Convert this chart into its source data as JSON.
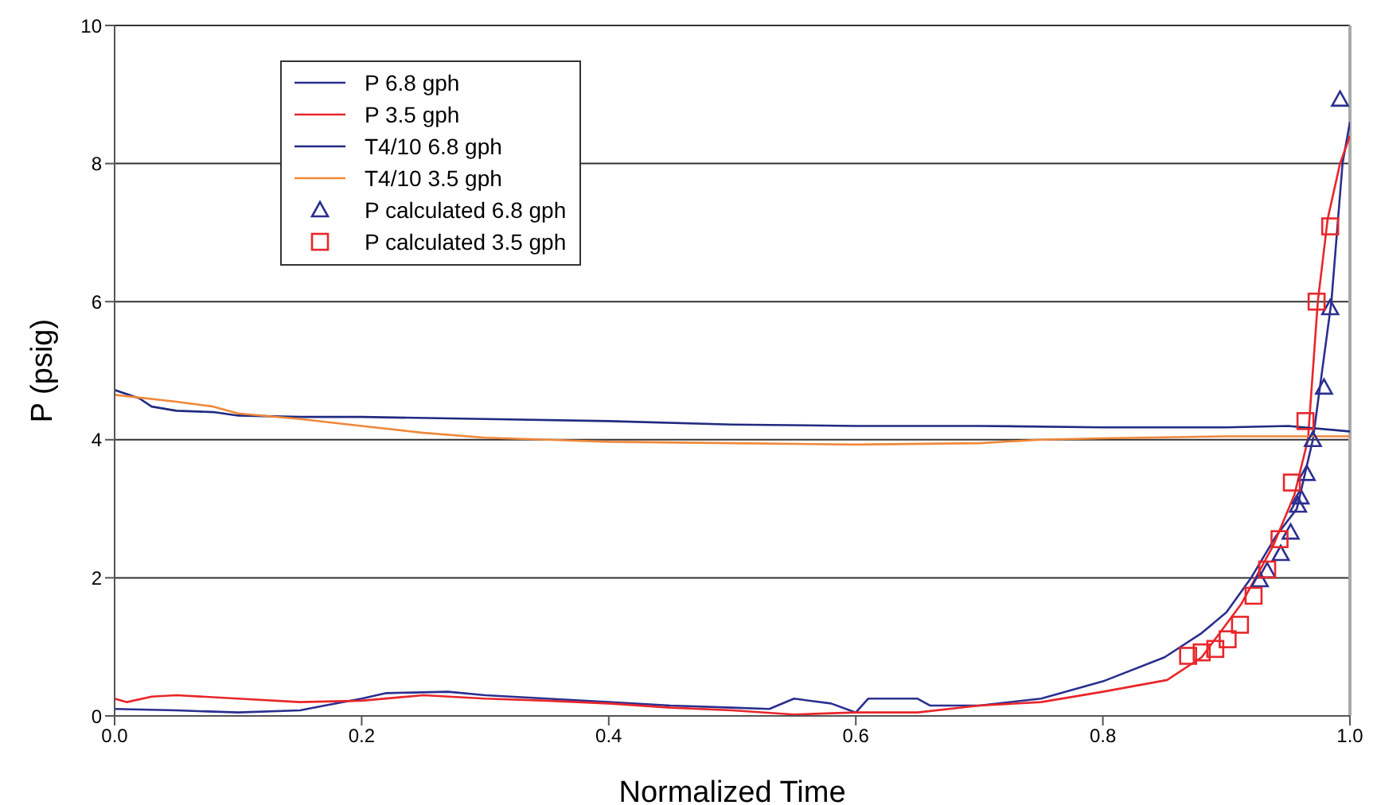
{
  "chart_data": {
    "type": "line",
    "xlabel": "Normalized Time",
    "ylabel": "P (psig)",
    "xlim": [
      0,
      1
    ],
    "ylim": [
      0,
      10
    ],
    "xticks": [
      {
        "value": 0,
        "label": "0.0"
      },
      {
        "value": 0.2,
        "label": "0.2"
      },
      {
        "value": 0.4,
        "label": "0.4"
      },
      {
        "value": 0.6,
        "label": "0.6"
      },
      {
        "value": 0.8,
        "label": "0.8"
      },
      {
        "value": 1,
        "label": "1.0"
      }
    ],
    "yticks": [
      0,
      2,
      4,
      6,
      8,
      10
    ],
    "grid": "y",
    "legend": "top left",
    "series": [
      {
        "name": "P 6.8 gph",
        "color": "#2b2f8f",
        "x": [
          0,
          0.05,
          0.1,
          0.15,
          0.17,
          0.2,
          0.22,
          0.27,
          0.3,
          0.35,
          0.4,
          0.45,
          0.5,
          0.53,
          0.55,
          0.58,
          0.6,
          0.61,
          0.65,
          0.66,
          0.7,
          0.75,
          0.8,
          0.85,
          0.88,
          0.9,
          0.92,
          0.94,
          0.957,
          0.97,
          0.985,
          0.994,
          1.0
        ],
        "values": [
          0.1,
          0.08,
          0.05,
          0.08,
          0.15,
          0.25,
          0.33,
          0.35,
          0.3,
          0.25,
          0.2,
          0.15,
          0.12,
          0.1,
          0.25,
          0.18,
          0.05,
          0.25,
          0.25,
          0.15,
          0.15,
          0.25,
          0.5,
          0.85,
          1.2,
          1.5,
          2.0,
          2.6,
          3.0,
          4.0,
          6.0,
          8.0,
          8.6
        ]
      },
      {
        "name": "P 3.5 gph",
        "color": "#e8262a",
        "x": [
          0,
          0.01,
          0.03,
          0.05,
          0.1,
          0.15,
          0.2,
          0.25,
          0.3,
          0.35,
          0.4,
          0.45,
          0.5,
          0.55,
          0.6,
          0.65,
          0.7,
          0.75,
          0.8,
          0.852,
          0.88,
          0.912,
          0.938,
          0.955,
          0.966,
          0.974,
          0.982,
          0.992,
          1.0
        ],
        "values": [
          0.25,
          0.2,
          0.28,
          0.3,
          0.25,
          0.2,
          0.22,
          0.3,
          0.25,
          0.22,
          0.18,
          0.12,
          0.08,
          0.02,
          0.05,
          0.05,
          0.15,
          0.2,
          0.35,
          0.52,
          0.85,
          1.62,
          2.47,
          3.2,
          4.0,
          6.0,
          7.2,
          8.0,
          8.4
        ]
      },
      {
        "name": "T4/10 6.8 gph",
        "color": "#1f2a80",
        "x": [
          0,
          0.02,
          0.03,
          0.05,
          0.08,
          0.1,
          0.15,
          0.2,
          0.3,
          0.4,
          0.5,
          0.6,
          0.7,
          0.8,
          0.9,
          0.95,
          1.0
        ],
        "values": [
          4.72,
          4.6,
          4.48,
          4.42,
          4.4,
          4.35,
          4.33,
          4.33,
          4.3,
          4.27,
          4.22,
          4.2,
          4.2,
          4.18,
          4.18,
          4.2,
          4.12
        ]
      },
      {
        "name": "T4/10 3.5 gph",
        "color": "#f0883a",
        "x": [
          0,
          0.05,
          0.08,
          0.1,
          0.15,
          0.2,
          0.25,
          0.3,
          0.35,
          0.4,
          0.5,
          0.6,
          0.7,
          0.75,
          0.8,
          0.9,
          1.0
        ],
        "values": [
          4.65,
          4.55,
          4.48,
          4.38,
          4.3,
          4.2,
          4.1,
          4.03,
          4.0,
          3.97,
          3.95,
          3.93,
          3.95,
          4.0,
          4.02,
          4.05,
          4.05
        ]
      },
      {
        "name": "P calculated 6.8 gph",
        "type": "scatter",
        "marker": "triangle",
        "color": "#2b2f8f",
        "x": [
          0.927,
          0.933,
          0.944,
          0.952,
          0.958,
          0.96,
          0.965,
          0.97,
          0.979,
          0.984,
          0.992
        ],
        "values": [
          1.97,
          2.1,
          2.35,
          2.66,
          3.05,
          3.17,
          3.51,
          4.0,
          4.76,
          5.91,
          8.93
        ]
      },
      {
        "name": "P calculated 3.5 gph",
        "type": "scatter",
        "marker": "square",
        "color": "#e8262a",
        "x": [
          0.869,
          0.88,
          0.891,
          0.901,
          0.911,
          0.922,
          0.933,
          0.943,
          0.953,
          0.964,
          0.973,
          0.984
        ],
        "values": [
          0.87,
          0.92,
          0.97,
          1.11,
          1.32,
          1.74,
          2.12,
          2.56,
          3.38,
          4.27,
          6.0,
          7.09
        ]
      }
    ]
  }
}
